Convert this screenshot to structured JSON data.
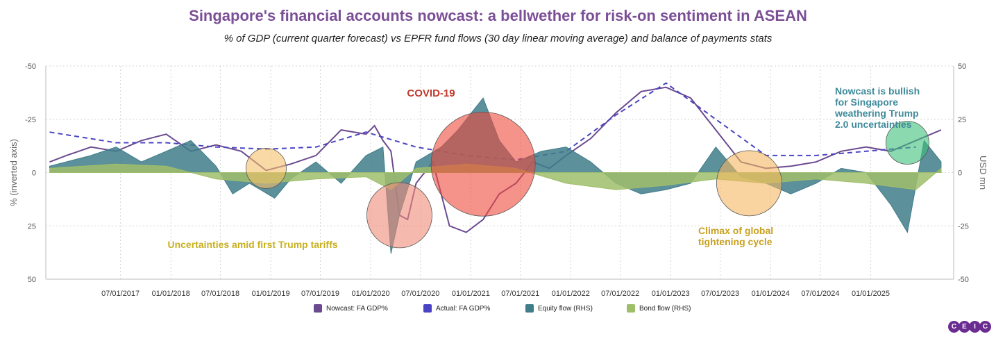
{
  "title": "Singapore's financial accounts nowcast: a bellwether for risk-on sentiment in ASEAN",
  "subtitle": "% of GDP (current quarter forecast) vs EPFR fund flows (30 day linear moving average) and balance of payments stats",
  "legend": [
    {
      "label": "Nowcast: FA GDP%",
      "color": "#6b4a8f"
    },
    {
      "label": "Actual: FA GDP%",
      "color": "#4a44c4"
    },
    {
      "label": "Equity flow (RHS)",
      "color": "#3f7d8a"
    },
    {
      "label": "Bond flow (RHS)",
      "color": "#9fbe6a"
    }
  ],
  "logo_letters": [
    "C",
    "E",
    "I",
    "C"
  ],
  "chart_data": {
    "type": "line",
    "title": "Singapore's financial accounts nowcast: a bellwether for risk-on sentiment in ASEAN",
    "ylabel_left": "% (inverted axis)",
    "ylabel_right": "USD mn",
    "left_axis": {
      "min": -50,
      "max": 50,
      "inverted": true,
      "ticks": [
        "-50",
        "-25",
        "0",
        "25",
        "50"
      ]
    },
    "right_axis": {
      "min": -50,
      "max": 50,
      "ticks": [
        "50",
        "25",
        "0",
        "-25",
        "-50"
      ]
    },
    "x_ticks": [
      "07/01/2017",
      "01/01/2018",
      "07/01/2018",
      "01/01/2019",
      "07/01/2019",
      "01/01/2020",
      "07/01/2020",
      "01/01/2021",
      "07/01/2021",
      "01/01/2022",
      "07/01/2022",
      "01/01/2023",
      "07/01/2023",
      "01/01/2024",
      "07/01/2024",
      "01/01/2025"
    ],
    "x_range": [
      "2016-10-01",
      "2025-10-31"
    ],
    "grid": true,
    "series": [
      {
        "name": "Nowcast: FA GDP%",
        "axis": "left",
        "style": "line",
        "color": "#6b4a8f",
        "x": [
          "2016-10",
          "2016-12",
          "2017-03",
          "2017-06",
          "2017-09",
          "2017-12",
          "2018-03",
          "2018-06",
          "2018-09",
          "2018-12",
          "2019-03",
          "2019-06",
          "2019-09",
          "2019-12",
          "2020-01",
          "2020-02",
          "2020-03",
          "2020-04",
          "2020-05",
          "2020-06",
          "2020-08",
          "2020-10",
          "2020-12",
          "2021-02",
          "2021-04",
          "2021-06",
          "2021-08",
          "2021-10",
          "2021-12",
          "2022-03",
          "2022-06",
          "2022-09",
          "2022-12",
          "2023-03",
          "2023-06",
          "2023-09",
          "2023-12",
          "2024-03",
          "2024-06",
          "2024-09",
          "2024-12",
          "2025-03",
          "2025-06",
          "2025-09"
        ],
        "y": [
          -5,
          -8,
          -12,
          -10,
          -15,
          -18,
          -10,
          -13,
          -10,
          -1,
          -4,
          -8,
          -20,
          -18,
          -22,
          -15,
          -10,
          20,
          22,
          5,
          -5,
          25,
          28,
          22,
          10,
          5,
          -5,
          -2,
          -8,
          -16,
          -28,
          -38,
          -40,
          -35,
          -20,
          -5,
          -2,
          -3,
          -5,
          -10,
          -12,
          -10,
          -15,
          -20
        ]
      },
      {
        "name": "Actual: FA GDP%",
        "axis": "left",
        "style": "dashed",
        "color": "#4a44c4",
        "x": [
          "2016-10",
          "2017-06",
          "2017-12",
          "2018-06",
          "2018-12",
          "2019-06",
          "2019-12",
          "2020-06",
          "2020-12",
          "2021-06",
          "2021-12",
          "2022-06",
          "2022-12",
          "2023-06",
          "2023-12",
          "2024-06",
          "2024-12",
          "2025-06"
        ],
        "y": [
          -19,
          -14,
          -14,
          -12,
          -11,
          -12,
          -19,
          -12,
          -8,
          -6,
          -10,
          -27,
          -42,
          -25,
          -8,
          -8,
          -10,
          -12
        ]
      },
      {
        "name": "Equity flow (RHS)",
        "axis": "right",
        "style": "area",
        "color": "#3f7d8a",
        "x": [
          "2016-10",
          "2017-03",
          "2017-06",
          "2017-09",
          "2017-12",
          "2018-03",
          "2018-06",
          "2018-08",
          "2018-10",
          "2019-01",
          "2019-03",
          "2019-06",
          "2019-09",
          "2019-12",
          "2020-02",
          "2020-03",
          "2020-04",
          "2020-06",
          "2020-09",
          "2020-11",
          "2021-01",
          "2021-02",
          "2021-04",
          "2021-06",
          "2021-09",
          "2021-12",
          "2022-03",
          "2022-06",
          "2022-09",
          "2022-12",
          "2023-03",
          "2023-06",
          "2023-09",
          "2023-12",
          "2024-03",
          "2024-06",
          "2024-09",
          "2024-12",
          "2025-03",
          "2025-05",
          "2025-07",
          "2025-09"
        ],
        "y": [
          3,
          8,
          12,
          5,
          10,
          15,
          3,
          -10,
          -5,
          -12,
          -3,
          5,
          -5,
          8,
          12,
          -38,
          -20,
          5,
          12,
          20,
          30,
          35,
          15,
          5,
          10,
          12,
          5,
          -5,
          -10,
          -8,
          -5,
          12,
          -2,
          -5,
          -10,
          -5,
          2,
          0,
          -15,
          -28,
          15,
          5
        ]
      },
      {
        "name": "Bond flow (RHS)",
        "axis": "right",
        "style": "area",
        "color": "#9fbe6a",
        "x": [
          "2016-10",
          "2017-06",
          "2017-12",
          "2018-06",
          "2018-12",
          "2019-06",
          "2019-12",
          "2020-03",
          "2020-06",
          "2020-12",
          "2021-06",
          "2021-12",
          "2022-06",
          "2022-12",
          "2023-06",
          "2023-12",
          "2024-06",
          "2024-12",
          "2025-06",
          "2025-09"
        ],
        "y": [
          2,
          4,
          3,
          -3,
          -5,
          -3,
          -2,
          -8,
          2,
          4,
          2,
          -5,
          -8,
          -6,
          -3,
          -5,
          -3,
          -5,
          -8,
          2
        ]
      }
    ],
    "annotations": [
      {
        "text": "COVID-19",
        "color": "#c0392b"
      },
      {
        "text": "Uncertainties amid first Trump tariffs",
        "color": "#c8b020"
      },
      {
        "text": "Climax of global tightening cycle",
        "lines": [
          "Climax of global",
          "tightening cycle"
        ],
        "color": "#c8a020"
      },
      {
        "text": "Nowcast is bullish for Singapore weathering Trump 2.0 uncertainties",
        "lines": [
          "Nowcast is bullish",
          "for Singapore",
          "weathering Trump",
          "2.0 uncertainties"
        ],
        "color": "#3f8a9a"
      }
    ],
    "highlight_circles": [
      {
        "center_date": "2018-12",
        "center_value": 2,
        "color": "#f5c06b"
      },
      {
        "center_date": "2020-04",
        "center_value": -20,
        "color": "#f08a78"
      },
      {
        "center_date": "2021-02",
        "center_value": 4,
        "color": "#ef4a3a"
      },
      {
        "center_date": "2023-10",
        "center_value": -5,
        "color": "#f5b860"
      },
      {
        "center_date": "2025-05",
        "center_value": 14,
        "color": "#3ec07a"
      }
    ]
  }
}
